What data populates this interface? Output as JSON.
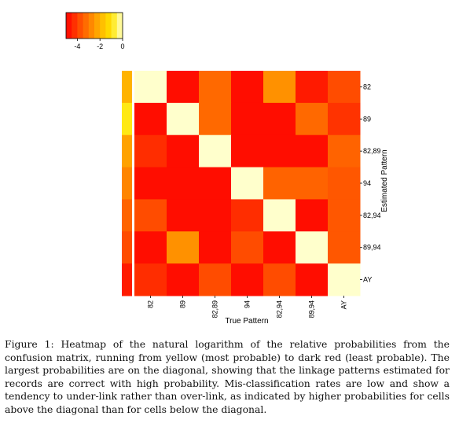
{
  "chart_data": {
    "type": "heatmap",
    "xlabel": "True Pattern",
    "ylabel": "Estimated Pattern",
    "x_categories": [
      "82",
      "89",
      "82,89",
      "94",
      "82,94",
      "89,94",
      "AY"
    ],
    "y_categories": [
      "82",
      "89",
      "82,89",
      "94",
      "82,94",
      "89,94",
      "AY"
    ],
    "values": [
      [
        0,
        -4.8,
        -3.3,
        -4.8,
        -2.6,
        -4.6,
        -3.8
      ],
      [
        -4.8,
        0,
        -3.3,
        -4.8,
        -4.8,
        -3.3,
        -4.2
      ],
      [
        -4.3,
        -4.8,
        0,
        -4.8,
        -4.8,
        -4.8,
        -3.4
      ],
      [
        -4.8,
        -4.8,
        -4.8,
        0,
        -3.4,
        -3.4,
        -3.6
      ],
      [
        -3.8,
        -4.8,
        -4.8,
        -4.3,
        0,
        -4.8,
        -3.6
      ],
      [
        -4.8,
        -2.6,
        -4.8,
        -3.8,
        -4.8,
        0,
        -3.6
      ],
      [
        -4.3,
        -4.8,
        -3.8,
        -4.8,
        -3.8,
        -4.8,
        0
      ]
    ],
    "row_side_colors": [
      -2.0,
      -0.9,
      -2.3,
      -2.8,
      -3.4,
      -3.8,
      -4.6
    ],
    "colorbar": {
      "range": [
        -5,
        0
      ],
      "ticks": [
        "-4",
        "-2",
        "0"
      ],
      "tick_values": [
        -4,
        -2,
        0
      ]
    },
    "colormap": [
      "#ff0000",
      "#ff4000",
      "#ff7a00",
      "#ffb300",
      "#ffe600",
      "#ffffcc"
    ]
  },
  "caption": "Figure 1: Heatmap of the natural logarithm of the relative probabilities from the confusion matrix, running from yellow (most probable) to dark red (least probable). The largest probabilities are on the diagonal, showing that the linkage patterns estimated for records are correct with high probability. Mis-classification rates are low and show a tendency to under-link rather than over-link, as indicated by higher probabilities for cells above the diagonal than for cells below the diagonal."
}
